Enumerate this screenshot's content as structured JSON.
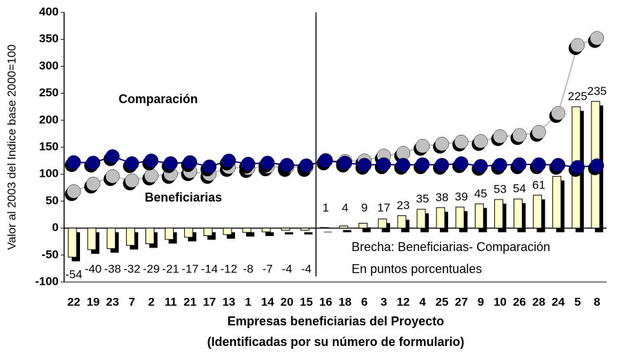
{
  "chart_data": {
    "type": "bar-line",
    "y_label": "Valor al 2003 del Indice base 2000=100",
    "x_label": [
      "Empresas beneficiarias del Proyecto",
      "(Identificadas por su número de formulario)"
    ],
    "categories": [
      "22",
      "19",
      "23",
      "7",
      "2",
      "11",
      "21",
      "17",
      "13",
      "1",
      "14",
      "20",
      "15",
      "16",
      "18",
      "6",
      "3",
      "12",
      "4",
      "25",
      "27",
      "9",
      "10",
      "26",
      "28",
      "24",
      "5",
      "8"
    ],
    "ylim": [
      -100,
      400
    ],
    "yticks": [
      -100,
      -50,
      0,
      50,
      100,
      150,
      200,
      250,
      300,
      350,
      400
    ],
    "annotations": [
      "Comparación",
      "Beneficiarias",
      "Brecha:  Beneficiarias- Comparación",
      "En puntos porcentuales"
    ],
    "series": [
      {
        "name": "Brecha",
        "kind": "bar",
        "color": "#ffffcc",
        "values": [
          -54,
          -40,
          -38,
          -32,
          -29,
          -21,
          -17,
          -14,
          -12,
          -8,
          -7,
          -4,
          -4,
          1,
          4,
          9,
          17,
          23,
          35,
          38,
          39,
          45,
          53,
          54,
          61,
          96,
          225,
          235
        ]
      },
      {
        "name": "Beneficiarias",
        "kind": "line",
        "color": "#c0c0c0",
        "values": [
          68,
          82,
          96,
          88,
          97,
          100,
          105,
          100,
          113,
          111,
          114,
          113,
          113,
          126,
          124,
          125,
          134,
          139,
          152,
          156,
          160,
          161,
          170,
          172,
          178,
          213,
          339,
          352
        ]
      },
      {
        "name": "Comparación",
        "kind": "line",
        "color": "#000080",
        "values": [
          122,
          121,
          133,
          120,
          125,
          120,
          122,
          114,
          125,
          119,
          121,
          117,
          116,
          125,
          121,
          117,
          118,
          117,
          118,
          117,
          120,
          115,
          117,
          118,
          118,
          117,
          113,
          116
        ]
      }
    ]
  }
}
